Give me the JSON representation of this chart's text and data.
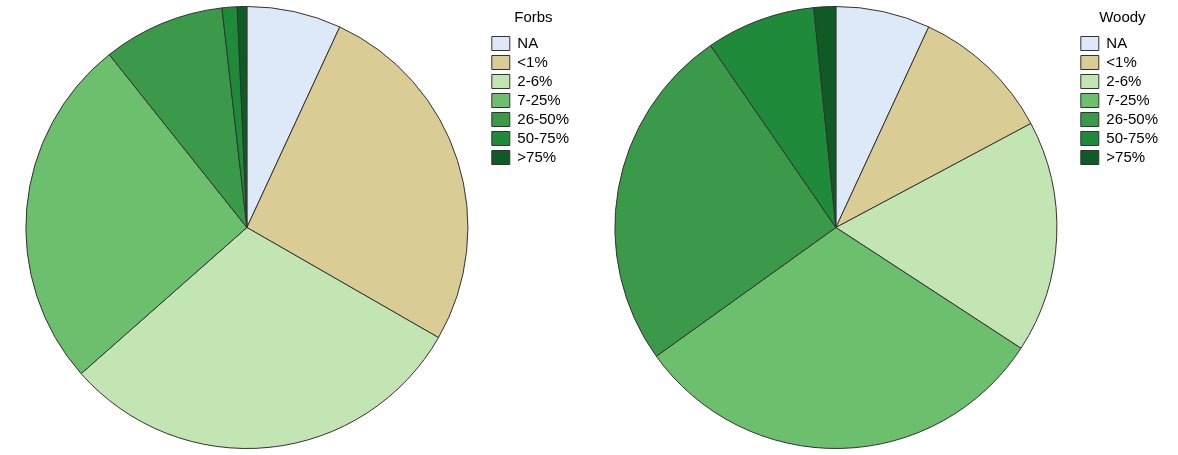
{
  "chart_data": [
    {
      "type": "pie",
      "legend_title": "Forbs",
      "legend": "top right",
      "categories": [
        "NA",
        "<1%",
        "2-6%",
        "7-25%",
        "26-50%",
        "50-75%",
        ">75%"
      ],
      "values": [
        6.9,
        26.4,
        30.2,
        25.8,
        8.9,
        1.1,
        0.7
      ],
      "colors": [
        "#dde9f7",
        "#d9cc94",
        "#c3e5b4",
        "#6cbf6c",
        "#3a9a4a",
        "#1f8a3a",
        "#0f5a25"
      ]
    },
    {
      "type": "pie",
      "legend_title": "Woody",
      "legend": "top right",
      "categories": [
        "NA",
        "<1%",
        "2-6%",
        "7-25%",
        "26-50%",
        "50-75%",
        ">75%"
      ],
      "values": [
        6.9,
        10.3,
        17.0,
        30.9,
        25.3,
        8.0,
        1.6
      ],
      "colors": [
        "#dde9f7",
        "#d9cc94",
        "#c3e5b4",
        "#6cbf6c",
        "#3a9a4a",
        "#1f8a3a",
        "#0f5a25"
      ]
    }
  ]
}
